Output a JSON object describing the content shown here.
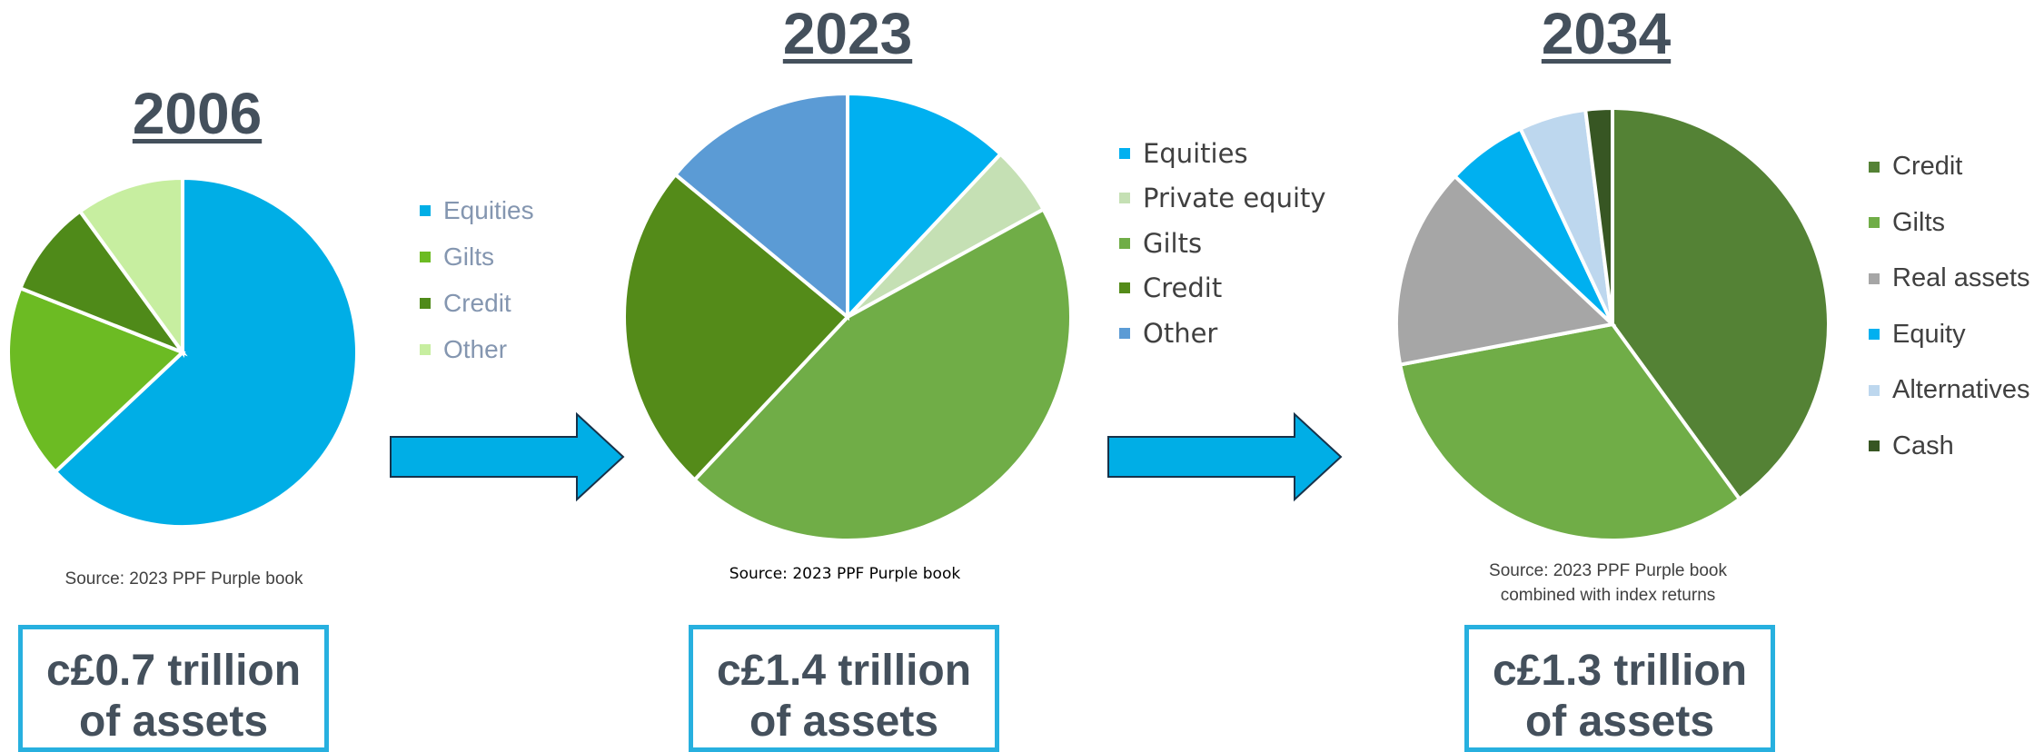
{
  "chart_data": [
    {
      "type": "pie",
      "title": "2006",
      "categories": [
        "Equities",
        "Gilts",
        "Credit",
        "Other"
      ],
      "values": [
        63,
        18,
        9,
        10
      ],
      "colors": [
        "#00aee6",
        "#6cbb23",
        "#4f8a19",
        "#c7eea0"
      ],
      "legend_position": "right",
      "source": "Source: 2023 PPF Purple book",
      "total": [
        "c£0.7 trillion",
        "of assets"
      ]
    },
    {
      "type": "pie",
      "title": "2023",
      "categories": [
        "Equities",
        "Private equity",
        "Gilts",
        "Credit",
        "Other"
      ],
      "values": [
        12,
        5,
        45,
        24,
        14
      ],
      "colors": [
        "#00b0f0",
        "#c5e0b4",
        "#70ad47",
        "#548b19",
        "#5b9bd5"
      ],
      "legend_position": "right",
      "source": "Source: 2023 PPF Purple book",
      "total": [
        "c£1.4 trillion",
        "of assets"
      ]
    },
    {
      "type": "pie",
      "title": "2034",
      "categories": [
        "Credit",
        "Gilts",
        "Real assets",
        "Equity",
        "Alternatives",
        "Cash"
      ],
      "values": [
        40,
        32,
        15,
        6,
        5,
        2
      ],
      "colors": [
        "#548235",
        "#70ad47",
        "#a6a6a6",
        "#00b0f0",
        "#bdd7ee",
        "#375623"
      ],
      "legend_position": "right",
      "source": "Source: 2023 PPF Purple book combined with index returns",
      "source_lines": [
        "Source: 2023 PPF Purple book",
        "combined with index returns"
      ],
      "total": [
        "c£1.3 trillion",
        "of assets"
      ]
    }
  ],
  "arrow_color": "#00aee6"
}
